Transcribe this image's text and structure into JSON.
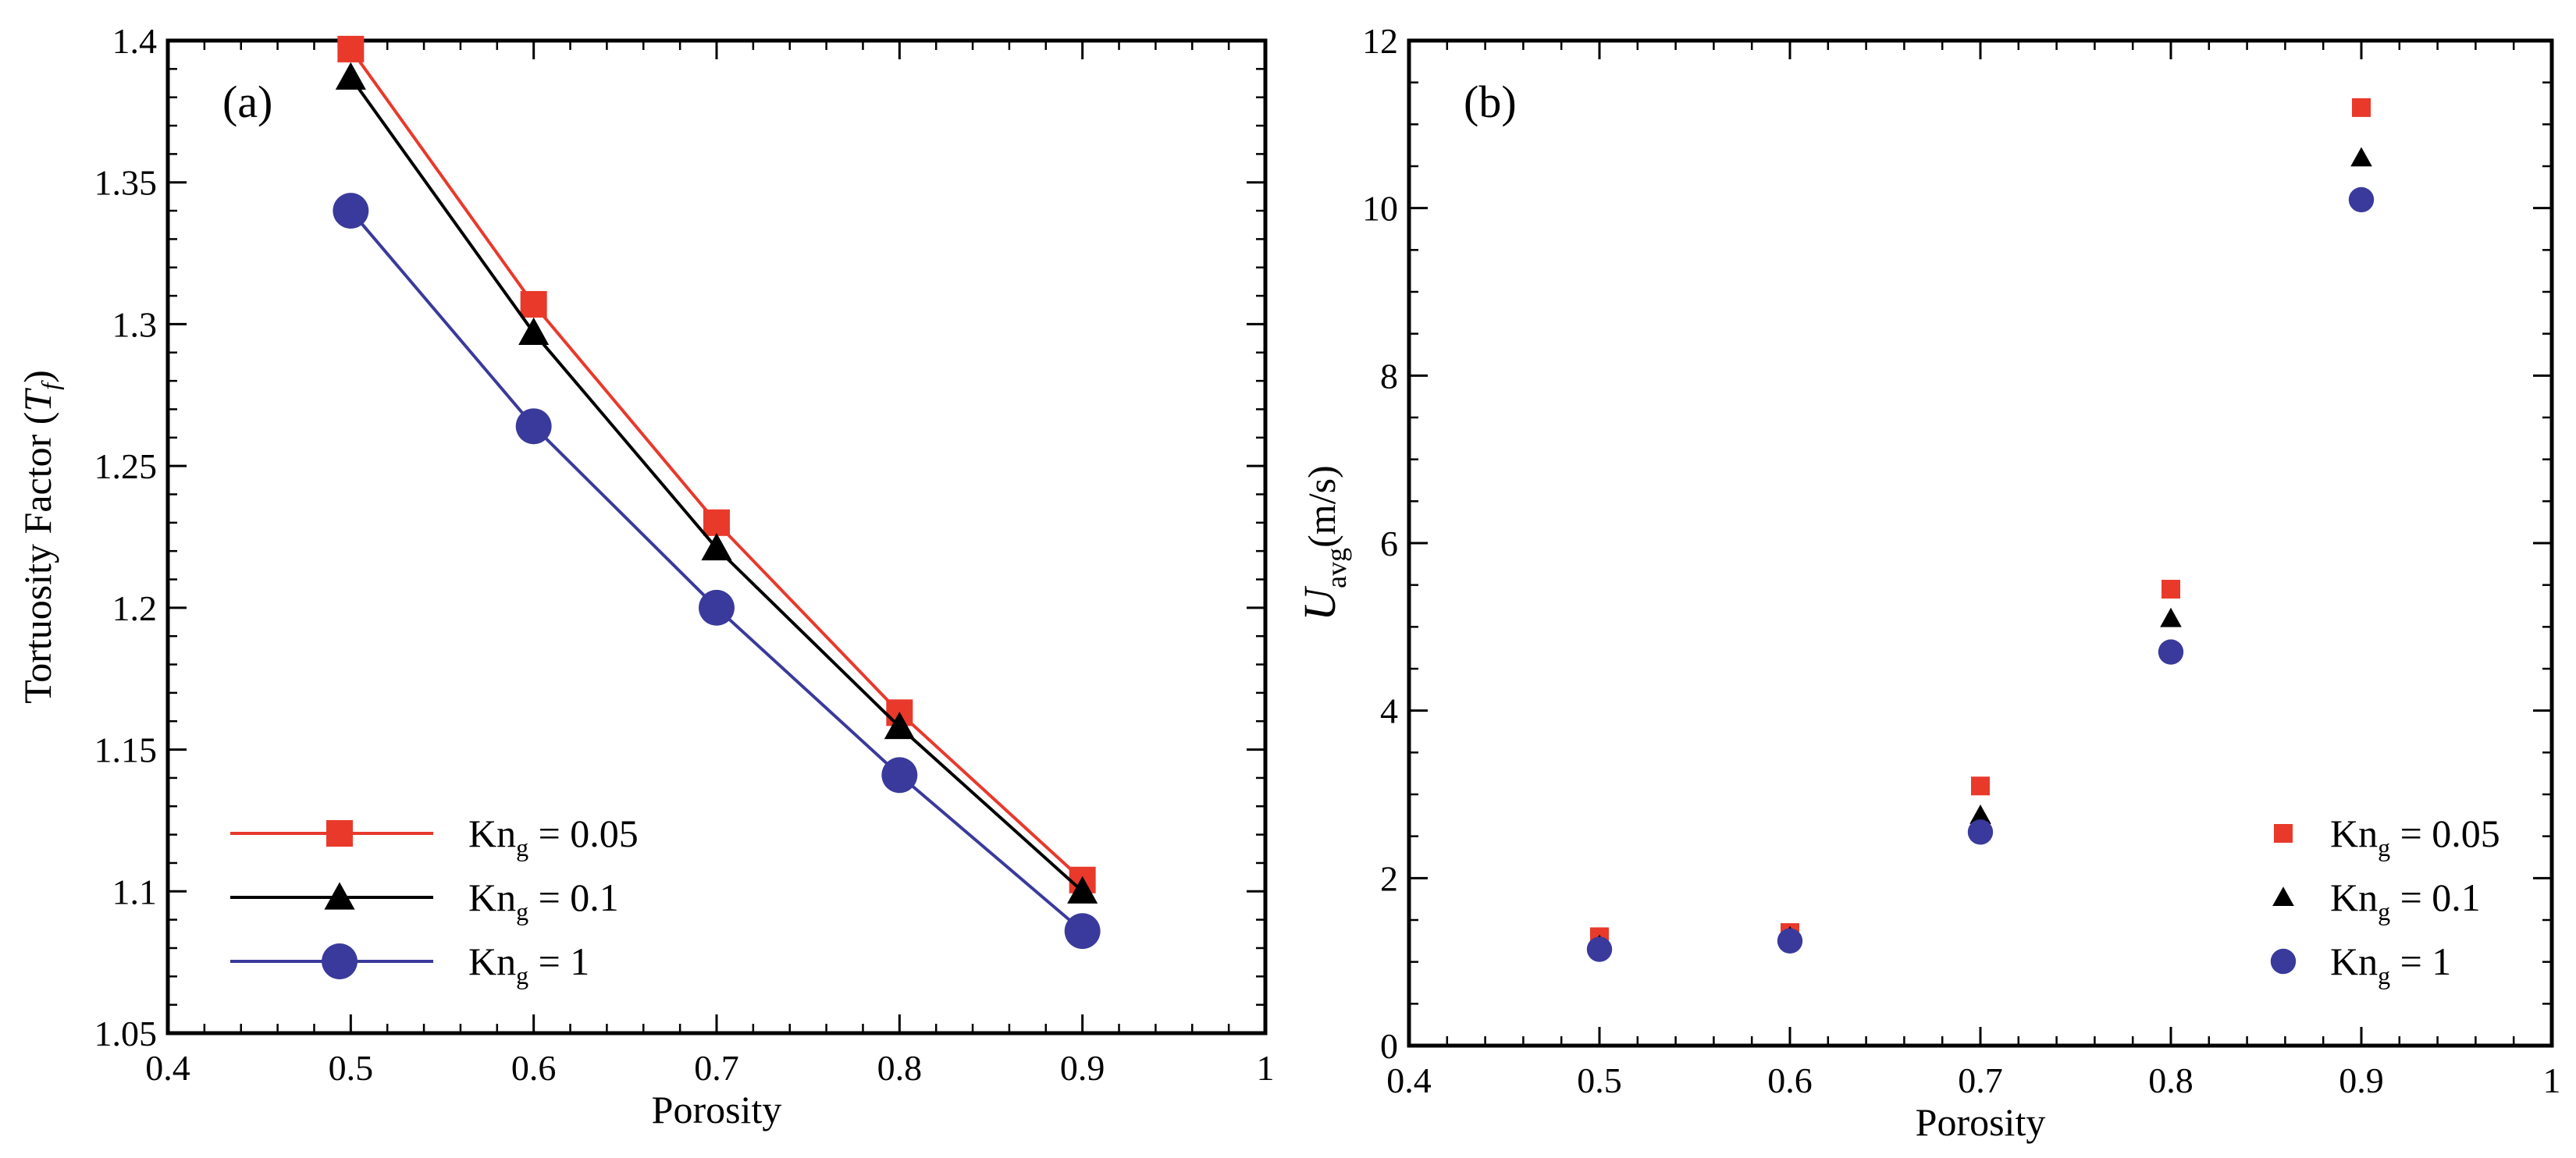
{
  "chart_data": [
    {
      "type": "line",
      "panel_label": "(a)",
      "xlabel": "Porosity",
      "ylabel": "Tortuosity Factor",
      "ylabel_symbol": "T",
      "ylabel_symbol_sub": "f",
      "xlim": [
        0.4,
        1.0
      ],
      "ylim": [
        1.05,
        1.4
      ],
      "xticks": [
        "0.4",
        "0.5",
        "0.6",
        "0.7",
        "0.8",
        "0.9",
        "1"
      ],
      "yticks": [
        "1.05",
        "1.1",
        "1.15",
        "1.2",
        "1.25",
        "1.3",
        "1.35",
        "1.4"
      ],
      "x": [
        0.5,
        0.6,
        0.7,
        0.8,
        0.9
      ],
      "legend_position": "bottom-left",
      "series": [
        {
          "name": "Kn",
          "name_sub": "g",
          "name_rest": " = 0.05",
          "marker": "square",
          "color": "#e8392b",
          "values": [
            1.397,
            1.307,
            1.23,
            1.163,
            1.104
          ]
        },
        {
          "name": "Kn",
          "name_sub": "g",
          "name_rest": " = 0.1",
          "marker": "triangle",
          "color": "#000000",
          "values": [
            1.387,
            1.297,
            1.221,
            1.158,
            1.1
          ]
        },
        {
          "name": "Kn",
          "name_sub": "g",
          "name_rest": " = 1",
          "marker": "circle",
          "color": "#3a3a9c",
          "values": [
            1.34,
            1.264,
            1.2,
            1.141,
            1.086
          ]
        }
      ]
    },
    {
      "type": "scatter",
      "panel_label": "(b)",
      "xlabel": "Porosity",
      "ylabel_symbol": "U",
      "ylabel_symbol_sub": "avg",
      "ylabel_unit": "(m/s)",
      "xlim": [
        0.4,
        1.0
      ],
      "ylim": [
        0,
        12
      ],
      "xticks": [
        "0.4",
        "0.5",
        "0.6",
        "0.7",
        "0.8",
        "0.9",
        "1"
      ],
      "yticks": [
        "0",
        "2",
        "4",
        "6",
        "8",
        "10",
        "12"
      ],
      "x": [
        0.5,
        0.6,
        0.7,
        0.8,
        0.9
      ],
      "legend_position": "bottom-right",
      "series": [
        {
          "name": "Kn",
          "name_sub": "g",
          "name_rest": " = 0.05",
          "marker": "square",
          "color": "#e8392b",
          "values": [
            1.3,
            1.35,
            3.1,
            5.45,
            11.2
          ]
        },
        {
          "name": "Kn",
          "name_sub": "g",
          "name_rest": " = 0.1",
          "marker": "triangle",
          "color": "#000000",
          "values": [
            1.2,
            1.3,
            2.75,
            5.1,
            10.6
          ]
        },
        {
          "name": "Kn",
          "name_sub": "g",
          "name_rest": " = 1",
          "marker": "circle",
          "color": "#3a3a9c",
          "values": [
            1.15,
            1.25,
            2.55,
            4.7,
            10.1
          ]
        }
      ]
    }
  ]
}
